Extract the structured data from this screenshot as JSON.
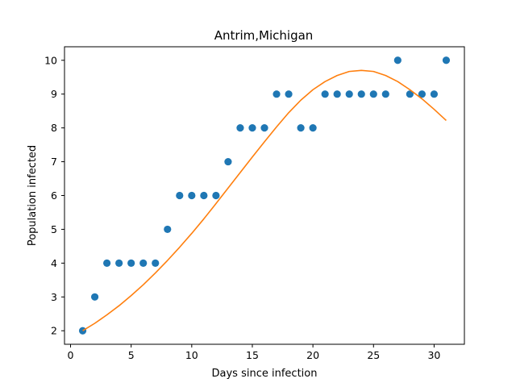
{
  "chart_data": {
    "type": "scatter",
    "title": "Antrim,Michigan",
    "xlabel": "Days since infection",
    "ylabel": "Population infected",
    "xlim": [
      -0.5,
      32.5
    ],
    "ylim": [
      1.6,
      10.4
    ],
    "xticks": [
      0,
      5,
      10,
      15,
      20,
      25,
      30
    ],
    "yticks": [
      2,
      3,
      4,
      5,
      6,
      7,
      8,
      9,
      10
    ],
    "grid": false,
    "legend": "none",
    "series": [
      {
        "kind": "scatter",
        "color": "#1f77b4",
        "x": [
          1,
          2,
          3,
          4,
          5,
          6,
          7,
          8,
          9,
          10,
          11,
          12,
          13,
          14,
          15,
          16,
          17,
          18,
          19,
          20,
          21,
          22,
          23,
          24,
          25,
          26,
          27,
          28,
          29,
          30,
          31
        ],
        "y": [
          2,
          3,
          4,
          4,
          4,
          4,
          4,
          5,
          6,
          6,
          6,
          6,
          7,
          8,
          8,
          8,
          9,
          9,
          8,
          8,
          9,
          9,
          9,
          9,
          9,
          9,
          10,
          9,
          9,
          9,
          10
        ]
      },
      {
        "kind": "line",
        "color": "#ff7f0e",
        "x": [
          1,
          2,
          3,
          4,
          5,
          6,
          7,
          8,
          9,
          10,
          11,
          12,
          13,
          14,
          15,
          16,
          17,
          18,
          19,
          20,
          21,
          22,
          23,
          24,
          25,
          26,
          27,
          28,
          29,
          30,
          31
        ],
        "y": [
          2.0,
          2.22,
          2.47,
          2.74,
          3.04,
          3.36,
          3.71,
          4.08,
          4.47,
          4.88,
          5.31,
          5.76,
          6.22,
          6.68,
          7.14,
          7.59,
          8.03,
          8.45,
          8.82,
          9.13,
          9.37,
          9.55,
          9.67,
          9.7,
          9.67,
          9.55,
          9.37,
          9.13,
          8.86,
          8.55,
          8.22
        ]
      }
    ]
  }
}
